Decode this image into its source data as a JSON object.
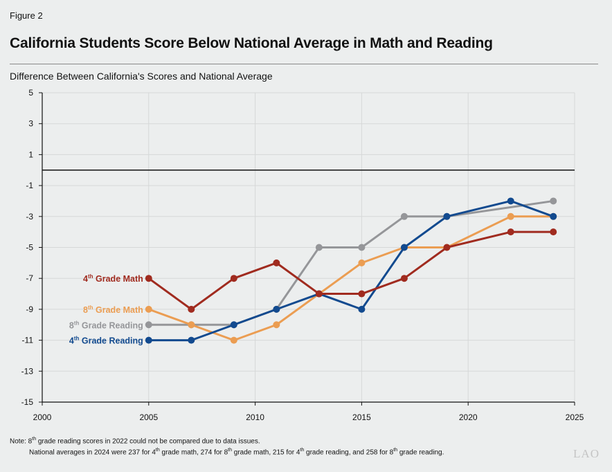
{
  "figure_label": "Figure 2",
  "title": "California Students Score Below National Average in Math and Reading",
  "chart_data": {
    "type": "line",
    "title": "California Students Score Below National Average in Math and Reading",
    "ylabel": "Difference Between California's Scores and National Average",
    "xlabel": "",
    "xlim": [
      2000,
      2025
    ],
    "ylim": [
      -15,
      5
    ],
    "xticks": [
      2000,
      2005,
      2010,
      2015,
      2020,
      2025
    ],
    "yticks": [
      5,
      3,
      1,
      -1,
      -3,
      -5,
      -7,
      -9,
      -11,
      -13,
      -15
    ],
    "reference_line": 0,
    "grid": true,
    "legend": "inline-left",
    "series": [
      {
        "name": "8th Grade Reading",
        "label_parts": [
          "8",
          "th",
          " Grade Reading"
        ],
        "color": "#959699",
        "points": [
          [
            2005,
            -10
          ],
          [
            2007,
            -10
          ],
          [
            2009,
            -10
          ],
          [
            2011,
            -9
          ],
          [
            2013,
            -5
          ],
          [
            2015,
            -5
          ],
          [
            2017,
            -3
          ],
          [
            2019,
            -3
          ],
          [
            2024,
            -2
          ]
        ]
      },
      {
        "name": "8th Grade Math",
        "label_parts": [
          "8",
          "th",
          " Grade Math"
        ],
        "color": "#eb9d52",
        "points": [
          [
            2005,
            -9
          ],
          [
            2007,
            -10
          ],
          [
            2009,
            -11
          ],
          [
            2011,
            -10
          ],
          [
            2013,
            -8
          ],
          [
            2015,
            -6
          ],
          [
            2017,
            -5
          ],
          [
            2019,
            -5
          ],
          [
            2022,
            -3
          ],
          [
            2024,
            -3
          ]
        ]
      },
      {
        "name": "4th Grade Reading",
        "label_parts": [
          "4",
          "th",
          " Grade Reading"
        ],
        "color": "#124a8f",
        "points": [
          [
            2005,
            -11
          ],
          [
            2007,
            -11
          ],
          [
            2009,
            -10
          ],
          [
            2011,
            -9
          ],
          [
            2013,
            -8
          ],
          [
            2015,
            -9
          ],
          [
            2017,
            -5
          ],
          [
            2019,
            -3
          ],
          [
            2022,
            -2
          ],
          [
            2024,
            -3
          ]
        ]
      },
      {
        "name": "4th Grade Math",
        "label_parts": [
          "4",
          "th",
          " Grade Math"
        ],
        "color": "#a02b1f",
        "points": [
          [
            2005,
            -7
          ],
          [
            2007,
            -9
          ],
          [
            2009,
            -7
          ],
          [
            2011,
            -6
          ],
          [
            2013,
            -8
          ],
          [
            2015,
            -8
          ],
          [
            2017,
            -7
          ],
          [
            2019,
            -5
          ],
          [
            2022,
            -4
          ],
          [
            2024,
            -4
          ]
        ]
      }
    ]
  },
  "note": {
    "line1": [
      "Note: 8",
      "th",
      " grade reading scores in 2022 could not be compared due to data issues."
    ],
    "line2": [
      "National averages in 2024 were 237 for 4",
      "th",
      " grade math, 274 for 8",
      "th",
      " grade math, 215 for 4",
      "th",
      " grade reading, and 258 for 8",
      "th",
      " grade reading."
    ]
  },
  "logo": "LAO"
}
